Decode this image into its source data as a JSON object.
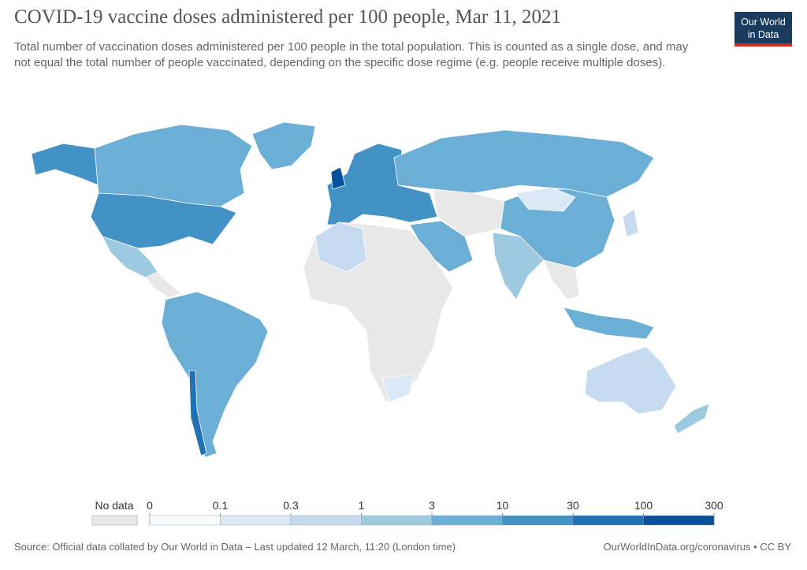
{
  "header": {
    "title": "COVID-19 vaccine doses administered per 100 people, Mar 11, 2021",
    "subtitle": "Total number of vaccination doses administered per 100 people in the total population. This is counted as a single dose, and may not equal the total number of people vaccinated, depending on the specific dose regime (e.g. people receive multiple doses).",
    "logo": [
      "Our World",
      "in Data"
    ]
  },
  "legend": {
    "no_data_label": "No data",
    "no_data_color": "#e8e8e8",
    "ticks": [
      0,
      0.1,
      0.3,
      1,
      3,
      10,
      30,
      100,
      300
    ],
    "colors": [
      "#f7fbff",
      "#dbe9f6",
      "#c6dbef",
      "#9ecae1",
      "#6baed6",
      "#4292c6",
      "#2171b5",
      "#08519c"
    ]
  },
  "footer": {
    "source": "Source: Official data collated by Our World in Data – Last updated 12 March, 11:20 (London time)",
    "link": "OurWorldInData.org/coronavirus • CC BY"
  }
}
